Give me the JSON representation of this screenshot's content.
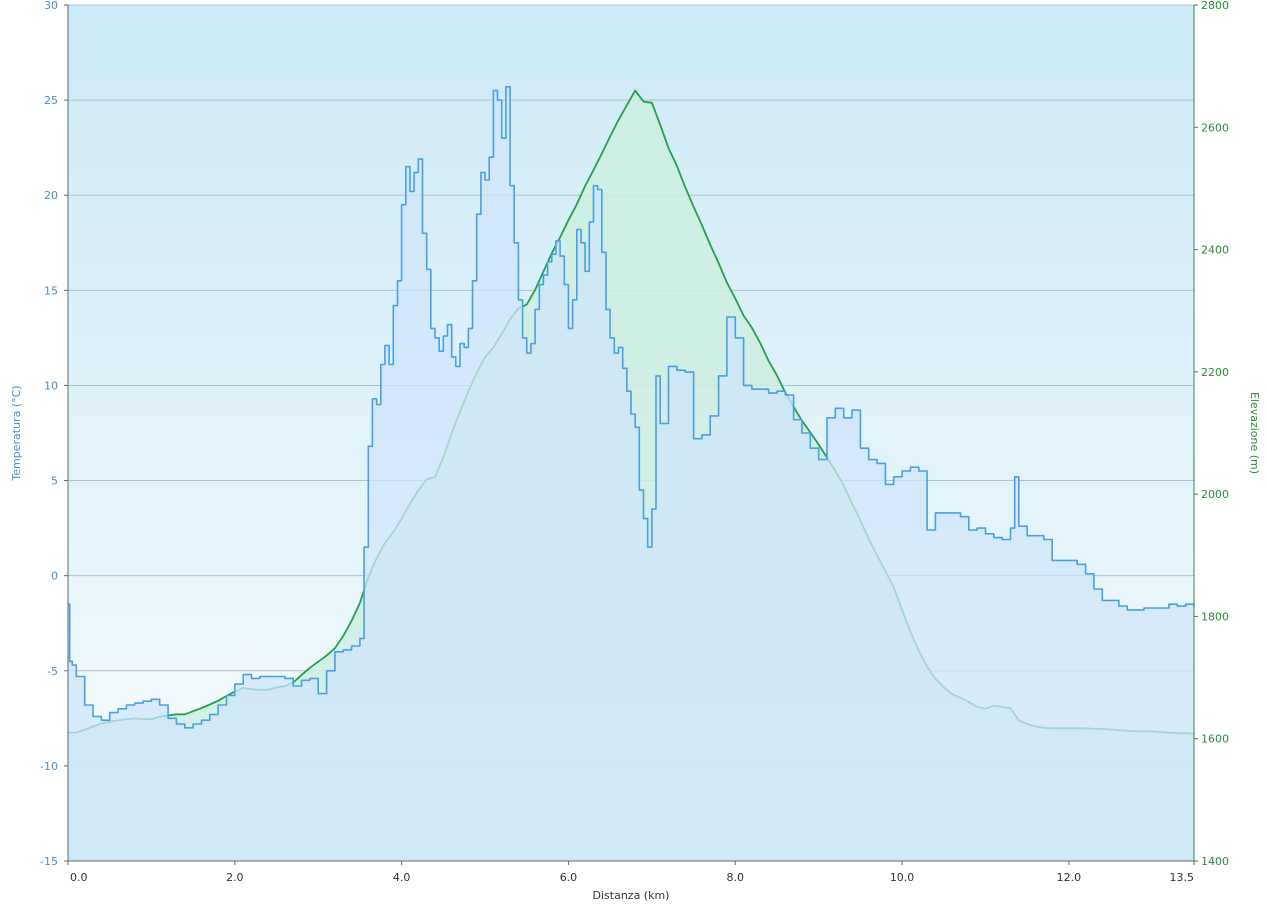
{
  "chart_data": {
    "type": "area",
    "xlabel": "Distanza  (km)",
    "x_ticks": [
      "0.0",
      "2.0",
      "4.0",
      "6.0",
      "8.0",
      "10.0",
      "12.0",
      "13.5"
    ],
    "xlim": [
      0,
      13.5
    ],
    "y_left": {
      "label": "Temperatura (°C)",
      "lim": [
        -15,
        30
      ],
      "ticks": [
        "-15",
        "-10",
        "-5",
        "0",
        "5",
        "10",
        "15",
        "20",
        "25",
        "30"
      ]
    },
    "y_right": {
      "label": "Elevazione (m)",
      "lim": [
        1400,
        2800
      ],
      "ticks": [
        "1400",
        "1600",
        "1800",
        "2000",
        "2200",
        "2400",
        "2600",
        "2800"
      ]
    },
    "grid": true,
    "series": [
      {
        "name": "Temperatura",
        "axis": "left",
        "color": "#4a9fe0",
        "fill": "#cfe6fb",
        "x": [
          0,
          0.02,
          0.05,
          0.1,
          0.2,
          0.3,
          0.4,
          0.5,
          0.6,
          0.7,
          0.8,
          0.9,
          1.0,
          1.1,
          1.2,
          1.3,
          1.4,
          1.5,
          1.6,
          1.7,
          1.8,
          1.9,
          2.0,
          2.1,
          2.2,
          2.3,
          2.4,
          2.5,
          2.6,
          2.7,
          2.8,
          2.9,
          3.0,
          3.1,
          3.2,
          3.3,
          3.4,
          3.5,
          3.55,
          3.6,
          3.65,
          3.7,
          3.75,
          3.8,
          3.85,
          3.9,
          3.95,
          4.0,
          4.05,
          4.1,
          4.15,
          4.2,
          4.25,
          4.3,
          4.35,
          4.4,
          4.45,
          4.5,
          4.55,
          4.6,
          4.65,
          4.7,
          4.75,
          4.8,
          4.85,
          4.9,
          4.95,
          5.0,
          5.05,
          5.1,
          5.15,
          5.2,
          5.25,
          5.3,
          5.35,
          5.4,
          5.45,
          5.5,
          5.55,
          5.6,
          5.65,
          5.7,
          5.75,
          5.8,
          5.85,
          5.9,
          5.95,
          6.0,
          6.05,
          6.1,
          6.15,
          6.2,
          6.25,
          6.3,
          6.35,
          6.4,
          6.45,
          6.5,
          6.55,
          6.6,
          6.65,
          6.7,
          6.75,
          6.8,
          6.85,
          6.9,
          6.95,
          7.0,
          7.05,
          7.1,
          7.2,
          7.3,
          7.4,
          7.5,
          7.6,
          7.7,
          7.8,
          7.9,
          8.0,
          8.1,
          8.2,
          8.3,
          8.4,
          8.5,
          8.6,
          8.7,
          8.8,
          8.9,
          9.0,
          9.1,
          9.2,
          9.3,
          9.4,
          9.5,
          9.6,
          9.7,
          9.8,
          9.9,
          10.0,
          10.1,
          10.2,
          10.3,
          10.4,
          10.5,
          10.6,
          10.7,
          10.8,
          10.9,
          11.0,
          11.1,
          11.2,
          11.3,
          11.35,
          11.4,
          11.5,
          11.6,
          11.7,
          11.8,
          11.9,
          12.0,
          12.1,
          12.2,
          12.3,
          12.4,
          12.5,
          12.6,
          12.7,
          12.8,
          12.9,
          13.0,
          13.1,
          13.2,
          13.3,
          13.4,
          13.5
        ],
        "values": [
          -1.5,
          -4.5,
          -4.7,
          -5.3,
          -6.8,
          -7.4,
          -7.6,
          -7.2,
          -7.0,
          -6.8,
          -6.7,
          -6.6,
          -6.5,
          -6.8,
          -7.5,
          -7.8,
          -8.0,
          -7.8,
          -7.6,
          -7.3,
          -6.8,
          -6.3,
          -5.7,
          -5.2,
          -5.4,
          -5.3,
          -5.3,
          -5.3,
          -5.4,
          -5.8,
          -5.5,
          -5.4,
          -6.2,
          -5.0,
          -4.0,
          -3.9,
          -3.7,
          -3.3,
          1.5,
          6.8,
          9.3,
          9.0,
          11.1,
          12.1,
          11.1,
          14.2,
          15.5,
          19.5,
          21.5,
          20.2,
          21.2,
          21.9,
          18.0,
          16.1,
          13.0,
          12.5,
          11.8,
          12.6,
          13.2,
          11.5,
          11.0,
          12.2,
          12.0,
          13.0,
          15.5,
          19.0,
          21.2,
          20.8,
          22.0,
          25.5,
          25.0,
          23.0,
          25.7,
          20.5,
          17.5,
          14.5,
          12.5,
          11.7,
          12.2,
          14.0,
          15.3,
          15.8,
          16.5,
          16.9,
          17.6,
          16.8,
          15.3,
          13.0,
          14.5,
          18.2,
          17.5,
          16.0,
          18.6,
          20.5,
          20.3,
          17.0,
          14.0,
          12.5,
          11.7,
          12.0,
          10.9,
          9.7,
          8.5,
          7.8,
          4.5,
          3.0,
          1.5,
          3.5,
          10.5,
          8.0,
          11.0,
          10.8,
          10.7,
          7.2,
          7.4,
          8.4,
          10.5,
          13.6,
          12.5,
          10.0,
          9.8,
          9.8,
          9.6,
          9.7,
          9.5,
          8.2,
          7.5,
          6.7,
          6.1,
          8.3,
          8.8,
          8.3,
          8.7,
          6.7,
          6.1,
          5.9,
          4.8,
          5.2,
          5.5,
          5.7,
          5.5,
          2.4,
          3.3,
          3.3,
          3.3,
          3.1,
          2.4,
          2.5,
          2.2,
          2.0,
          1.9,
          2.5,
          5.2,
          2.6,
          2.1,
          2.1,
          1.9,
          0.8,
          0.8,
          0.8,
          0.6,
          0.1,
          -0.7,
          -1.3,
          -1.3,
          -1.6,
          -1.8,
          -1.8,
          -1.7,
          -1.7,
          -1.7,
          -1.5,
          -1.6,
          -1.5,
          -1.6
        ]
      },
      {
        "name": "Elevazione",
        "axis": "right",
        "color": "#22a04a",
        "fill": "#cdeee1",
        "x": [
          0,
          0.1,
          0.2,
          0.3,
          0.4,
          0.5,
          0.6,
          0.7,
          0.8,
          0.9,
          1.0,
          1.1,
          1.2,
          1.3,
          1.4,
          1.5,
          1.6,
          1.7,
          1.8,
          1.9,
          2.0,
          2.1,
          2.2,
          2.3,
          2.4,
          2.5,
          2.6,
          2.7,
          2.8,
          2.9,
          3.0,
          3.1,
          3.2,
          3.3,
          3.4,
          3.5,
          3.6,
          3.7,
          3.8,
          3.9,
          4.0,
          4.1,
          4.2,
          4.3,
          4.4,
          4.5,
          4.6,
          4.7,
          4.8,
          4.9,
          5.0,
          5.1,
          5.2,
          5.3,
          5.4,
          5.5,
          5.6,
          5.7,
          5.8,
          5.9,
          6.0,
          6.1,
          6.2,
          6.3,
          6.4,
          6.5,
          6.6,
          6.7,
          6.8,
          6.9,
          7.0,
          7.1,
          7.2,
          7.3,
          7.4,
          7.5,
          7.6,
          7.7,
          7.8,
          7.9,
          8.0,
          8.1,
          8.2,
          8.3,
          8.4,
          8.5,
          8.6,
          8.7,
          8.8,
          8.9,
          9.0,
          9.1,
          9.2,
          9.3,
          9.4,
          9.5,
          9.6,
          9.7,
          9.8,
          9.9,
          10.0,
          10.1,
          10.2,
          10.3,
          10.4,
          10.5,
          10.6,
          10.7,
          10.8,
          10.9,
          11.0,
          11.1,
          11.2,
          11.3,
          11.4,
          11.5,
          11.6,
          11.7,
          11.8,
          11.9,
          12.0,
          12.1,
          12.2,
          12.3,
          12.4,
          12.5,
          12.6,
          12.7,
          12.8,
          12.9,
          13.0,
          13.1,
          13.2,
          13.3,
          13.4,
          13.5
        ],
        "values": [
          1610,
          1610,
          1615,
          1620,
          1625,
          1628,
          1630,
          1632,
          1633,
          1632,
          1632,
          1636,
          1638,
          1640,
          1640,
          1645,
          1650,
          1656,
          1662,
          1670,
          1677,
          1683,
          1681,
          1680,
          1680,
          1684,
          1686,
          1692,
          1704,
          1716,
          1726,
          1736,
          1748,
          1768,
          1793,
          1822,
          1864,
          1895,
          1920,
          1938,
          1960,
          1984,
          2006,
          2024,
          2028,
          2060,
          2100,
          2135,
          2168,
          2198,
          2224,
          2240,
          2262,
          2286,
          2304,
          2310,
          2334,
          2364,
          2394,
          2420,
          2448,
          2474,
          2504,
          2530,
          2557,
          2585,
          2612,
          2636,
          2660,
          2642,
          2640,
          2604,
          2566,
          2537,
          2502,
          2470,
          2440,
          2408,
          2378,
          2346,
          2320,
          2292,
          2272,
          2247,
          2218,
          2194,
          2166,
          2143,
          2120,
          2101,
          2081,
          2060,
          2038,
          2014,
          1985,
          1957,
          1927,
          1900,
          1874,
          1848,
          1810,
          1775,
          1744,
          1718,
          1698,
          1684,
          1673,
          1667,
          1660,
          1652,
          1649,
          1654,
          1652,
          1650,
          1630,
          1624,
          1620,
          1618,
          1617,
          1617,
          1617,
          1617,
          1617,
          1616,
          1616,
          1615,
          1614,
          1613,
          1612,
          1612,
          1612,
          1611,
          1610,
          1609,
          1609,
          1608
        ]
      }
    ]
  }
}
